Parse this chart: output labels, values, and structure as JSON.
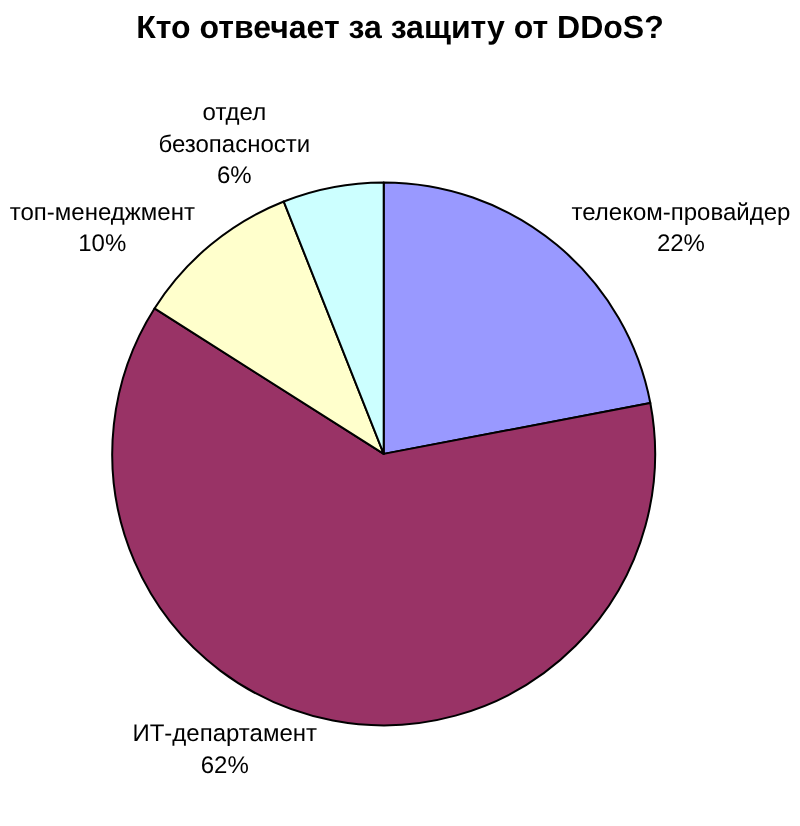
{
  "chart_data": {
    "type": "pie",
    "title": "Кто отвечает за защиту от DDoS?",
    "categories": [
      "телеком-провайдер",
      "ИТ-департамент",
      "топ-менеджмент",
      "отдел\nбезопасности"
    ],
    "values": [
      22,
      62,
      10,
      6
    ],
    "colors": [
      "#9999ff",
      "#993366",
      "#ffffcc",
      "#ccffff"
    ],
    "value_labels": [
      "22%",
      "62%",
      "10%",
      "6%"
    ]
  }
}
